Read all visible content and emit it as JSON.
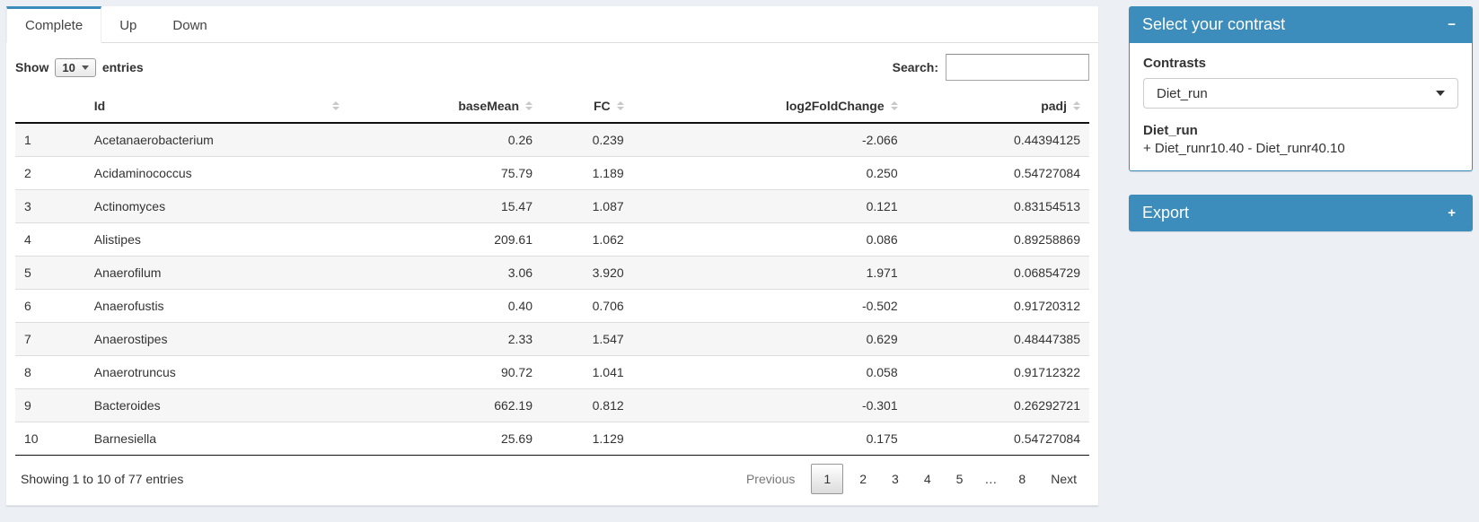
{
  "colors": {
    "primary": "#3c8dbc",
    "page_bg": "#ecf0f5",
    "stripe": "#f6f6f6"
  },
  "tabs": [
    {
      "label": "Complete",
      "active": true
    },
    {
      "label": "Up",
      "active": false
    },
    {
      "label": "Down",
      "active": false
    }
  ],
  "table_controls": {
    "show_label": "Show",
    "page_length": "10",
    "entries_label": "entries",
    "search_label": "Search:",
    "search_value": ""
  },
  "table": {
    "columns": [
      {
        "label": "",
        "align": "left",
        "sortable": false
      },
      {
        "label": "Id",
        "align": "left",
        "sortable": true
      },
      {
        "label": "baseMean",
        "align": "right",
        "sortable": true
      },
      {
        "label": "FC",
        "align": "right",
        "sortable": true
      },
      {
        "label": "log2FoldChange",
        "align": "right",
        "sortable": true
      },
      {
        "label": "padj",
        "align": "right",
        "sortable": true
      }
    ],
    "rows": [
      [
        "1",
        "Acetanaerobacterium",
        "0.26",
        "0.239",
        "-2.066",
        "0.44394125"
      ],
      [
        "2",
        "Acidaminococcus",
        "75.79",
        "1.189",
        "0.250",
        "0.54727084"
      ],
      [
        "3",
        "Actinomyces",
        "15.47",
        "1.087",
        "0.121",
        "0.83154513"
      ],
      [
        "4",
        "Alistipes",
        "209.61",
        "1.062",
        "0.086",
        "0.89258869"
      ],
      [
        "5",
        "Anaerofilum",
        "3.06",
        "3.920",
        "1.971",
        "0.06854729"
      ],
      [
        "6",
        "Anaerofustis",
        "0.40",
        "0.706",
        "-0.502",
        "0.91720312"
      ],
      [
        "7",
        "Anaerostipes",
        "2.33",
        "1.547",
        "0.629",
        "0.48447385"
      ],
      [
        "8",
        "Anaerotruncus",
        "90.72",
        "1.041",
        "0.058",
        "0.91712322"
      ],
      [
        "9",
        "Bacteroides",
        "662.19",
        "0.812",
        "-0.301",
        "0.26292721"
      ],
      [
        "10",
        "Barnesiella",
        "25.69",
        "1.129",
        "0.175",
        "0.54727084"
      ]
    ]
  },
  "table_footer": {
    "info": "Showing 1 to 10 of 77 entries",
    "pagination": [
      "Previous",
      "1",
      "2",
      "3",
      "4",
      "5",
      "…",
      "8",
      "Next"
    ],
    "current_page": "1"
  },
  "contrast_box": {
    "title": "Select your contrast",
    "collapse_icon": "−",
    "contrasts_label": "Contrasts",
    "selected_contrast": "Diet_run",
    "contrast_name": "Diet_run",
    "contrast_formula": "+ Diet_runr10.40 - Diet_runr40.10"
  },
  "export_box": {
    "title": "Export",
    "expand_icon": "+"
  }
}
